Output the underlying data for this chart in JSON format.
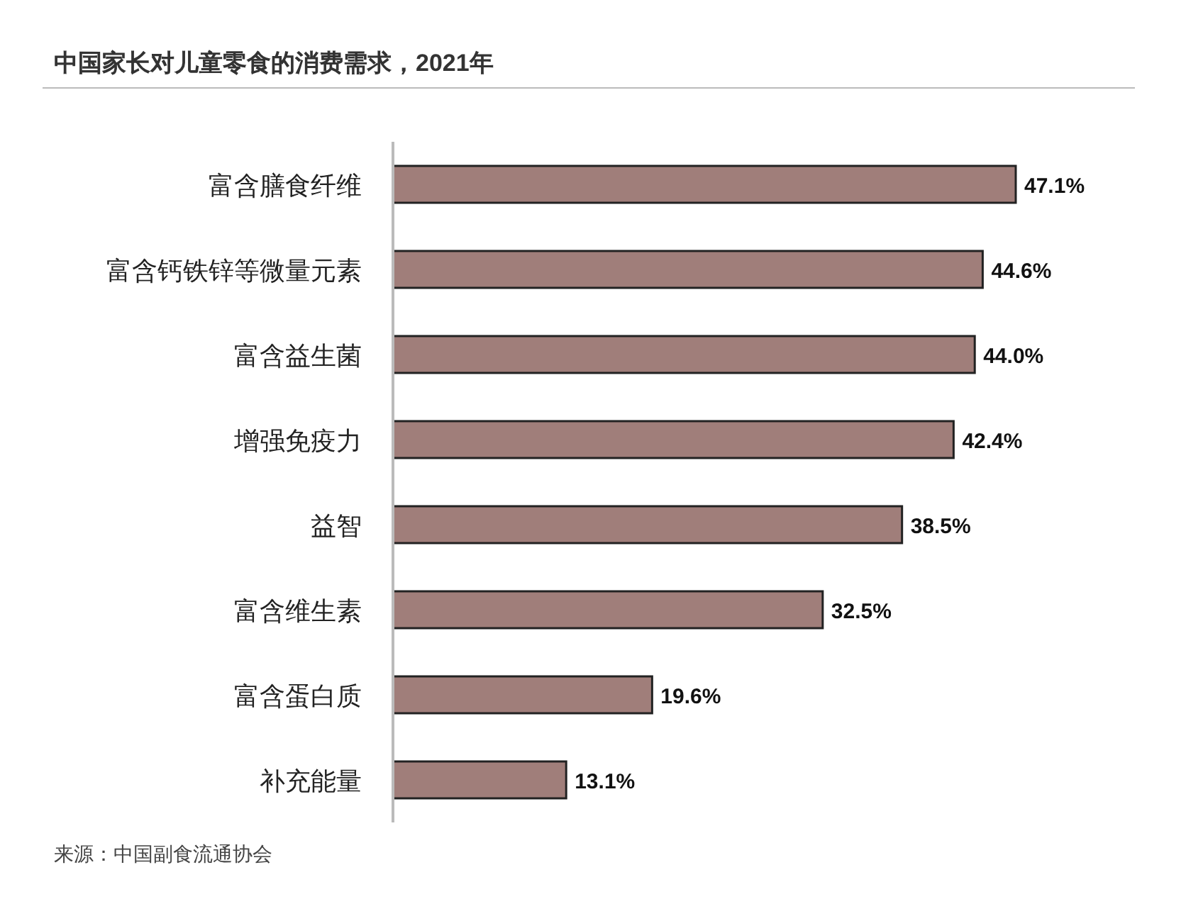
{
  "chart_data": {
    "type": "bar",
    "orientation": "horizontal",
    "title": "中国家长对儿童零食的消费需求，2021年",
    "categories": [
      "富含膳食纤维",
      "富含钙铁锌等微量元素",
      "富含益生菌",
      "增强免疫力",
      "益智",
      "富含维生素",
      "富含蛋白质",
      "补充能量"
    ],
    "values": [
      47.1,
      44.6,
      44.0,
      42.4,
      38.5,
      32.5,
      19.6,
      13.1
    ],
    "value_labels": [
      "47.1%",
      "44.6%",
      "44.0%",
      "42.4%",
      "38.5%",
      "32.5%",
      "19.6%",
      "13.1%"
    ],
    "color": "#a07e7a",
    "annotations": [
      "来源：中国副食流通协会"
    ]
  }
}
